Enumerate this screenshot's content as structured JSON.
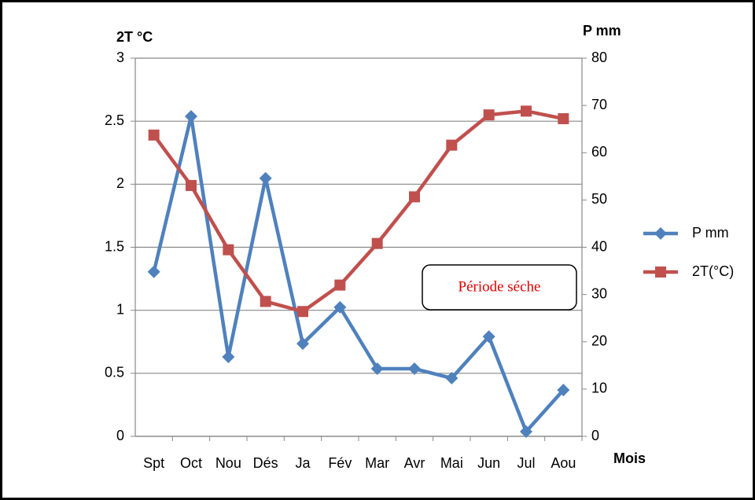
{
  "chart_data": {
    "type": "line",
    "ylabel": "2T °C",
    "y2label": "P mm",
    "xlabel": "Mois",
    "annotation": "Période séche",
    "categories": [
      "Spt",
      "Oct",
      "Nou",
      "Dés",
      "Ja",
      "Fév",
      "Mar",
      "Avr",
      "Mai",
      "Jun",
      "Jul",
      "Aou"
    ],
    "series": [
      {
        "name": "P mm",
        "color": "#4f81bd",
        "marker": "diamond",
        "axis": "y2",
        "values": [
          34.8,
          67.7,
          16.8,
          54.6,
          19.6,
          27.3,
          14.3,
          14.3,
          12.3,
          21.1,
          1,
          9.8
        ]
      },
      {
        "name": "2T(°C)",
        "color": "#c0504d",
        "marker": "square",
        "axis": "y",
        "values": [
          2.39,
          1.99,
          1.48,
          1.07,
          0.99,
          1.2,
          1.53,
          1.9,
          2.31,
          2.55,
          2.58,
          2.52
        ]
      }
    ],
    "ylim": [
      0,
      3
    ],
    "yticks": [
      0,
      0.5,
      1,
      1.5,
      2,
      2.5,
      3
    ],
    "y2lim": [
      0,
      80
    ],
    "y2ticks": [
      0,
      10,
      20,
      30,
      40,
      50,
      60,
      70,
      80
    ],
    "grid": true,
    "legend": "right"
  }
}
